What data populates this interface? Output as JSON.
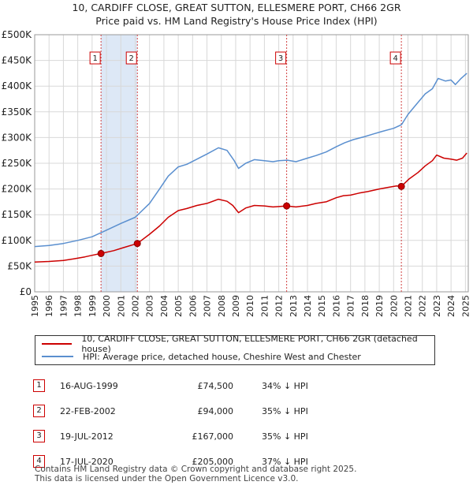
{
  "header": {
    "title_line1": "10, CARDIFF CLOSE, GREAT SUTTON, ELLESMERE PORT, CH66 2GR",
    "title_line2": "Price paid vs. HM Land Registry's House Price Index (HPI)"
  },
  "chart_data": {
    "type": "line",
    "title": "10, CARDIFF CLOSE, GREAT SUTTON, ELLESMERE PORT, CH66 2GR — Price paid vs. HM Land Registry's House Price Index (HPI)",
    "xlim": [
      1995,
      2025.2
    ],
    "ylim": [
      0,
      500000
    ],
    "y_ticks": [
      0,
      50000,
      100000,
      150000,
      200000,
      250000,
      300000,
      350000,
      400000,
      450000,
      500000
    ],
    "y_tick_labels": [
      "£0",
      "£50K",
      "£100K",
      "£150K",
      "£200K",
      "£250K",
      "£300K",
      "£350K",
      "£400K",
      "£450K",
      "£500K"
    ],
    "x_ticks": [
      1995,
      1996,
      1997,
      1998,
      1999,
      2000,
      2001,
      2002,
      2003,
      2004,
      2005,
      2006,
      2007,
      2008,
      2009,
      2010,
      2011,
      2012,
      2013,
      2014,
      2015,
      2016,
      2017,
      2018,
      2019,
      2020,
      2021,
      2022,
      2023,
      2024,
      2025
    ],
    "grid": true,
    "series": [
      {
        "name": "10, CARDIFF CLOSE, GREAT SUTTON, ELLESMERE PORT, CH66 2GR (detached house)",
        "color": "#cc0000",
        "x": [
          1995.0,
          1996.0,
          1997.0,
          1997.7,
          1998.5,
          1999.0,
          1999.62,
          2000.5,
          2001.2,
          2002.15,
          2003.0,
          2003.7,
          2004.3,
          2005.0,
          2005.6,
          2006.3,
          2007.0,
          2007.8,
          2008.4,
          2008.8,
          2009.2,
          2009.7,
          2010.3,
          2011.0,
          2011.6,
          2012.1,
          2012.55,
          2013.2,
          2014.0,
          2014.6,
          2015.3,
          2016.0,
          2016.5,
          2017.0,
          2017.6,
          2018.2,
          2019.0,
          2019.6,
          2020.2,
          2020.54,
          2021.1,
          2021.7,
          2022.2,
          2022.7,
          2023.0,
          2023.5,
          2024.0,
          2024.4,
          2024.8,
          2025.1
        ],
        "values": [
          58000,
          59000,
          61000,
          64000,
          68000,
          71000,
          74500,
          80000,
          86000,
          94000,
          112000,
          128000,
          145000,
          158000,
          162000,
          168000,
          172000,
          180000,
          176000,
          168000,
          154000,
          163000,
          168000,
          167000,
          165000,
          166000,
          167000,
          165000,
          168000,
          172000,
          175000,
          183000,
          187000,
          188000,
          192000,
          195000,
          200000,
          203000,
          206000,
          205000,
          220000,
          232000,
          245000,
          255000,
          266000,
          260000,
          258000,
          256000,
          260000,
          270000
        ]
      },
      {
        "name": "HPI: Average price, detached house, Cheshire West and Chester",
        "color": "#5a8fcf",
        "x": [
          1995.0,
          1996.0,
          1997.0,
          1998.0,
          1999.0,
          2000.0,
          2001.0,
          2002.0,
          2003.0,
          2003.7,
          2004.3,
          2005.0,
          2005.6,
          2006.3,
          2007.0,
          2007.8,
          2008.4,
          2008.9,
          2009.2,
          2009.7,
          2010.3,
          2011.0,
          2011.6,
          2012.0,
          2012.6,
          2013.2,
          2014.0,
          2014.6,
          2015.3,
          2016.0,
          2016.6,
          2017.2,
          2018.0,
          2018.6,
          2019.2,
          2020.0,
          2020.55,
          2021.0,
          2021.6,
          2022.2,
          2022.7,
          2023.1,
          2023.6,
          2024.0,
          2024.3,
          2024.7,
          2025.1
        ],
        "values": [
          88000,
          90000,
          94000,
          100000,
          107000,
          120000,
          133000,
          145000,
          172000,
          200000,
          225000,
          243000,
          248000,
          258000,
          268000,
          280000,
          275000,
          255000,
          240000,
          250000,
          257000,
          255000,
          253000,
          255000,
          256000,
          253000,
          260000,
          265000,
          272000,
          282000,
          290000,
          296000,
          302000,
          307000,
          312000,
          318000,
          325000,
          345000,
          365000,
          385000,
          395000,
          415000,
          410000,
          412000,
          403000,
          415000,
          425000
        ]
      }
    ],
    "sales": [
      {
        "n": "1",
        "x": 1999.62,
        "value": 74500
      },
      {
        "n": "2",
        "x": 2002.15,
        "value": 94000
      },
      {
        "n": "3",
        "x": 2012.55,
        "value": 167000
      },
      {
        "n": "4",
        "x": 2020.54,
        "value": 205000
      }
    ],
    "shaded_spans": [
      [
        1999.62,
        2002.15
      ]
    ]
  },
  "legend": {
    "property_label": "10, CARDIFF CLOSE, GREAT SUTTON, ELLESMERE PORT, CH66 2GR (detached house)",
    "hpi_label": "HPI: Average price, detached house, Cheshire West and Chester"
  },
  "transactions": [
    {
      "n": "1",
      "date": "16-AUG-1999",
      "price": "£74,500",
      "hpi": "34% ↓ HPI"
    },
    {
      "n": "2",
      "date": "22-FEB-2002",
      "price": "£94,000",
      "hpi": "35% ↓ HPI"
    },
    {
      "n": "3",
      "date": "19-JUL-2012",
      "price": "£167,000",
      "hpi": "35% ↓ HPI"
    },
    {
      "n": "4",
      "date": "17-JUL-2020",
      "price": "£205,000",
      "hpi": "37% ↓ HPI"
    }
  ],
  "footer": {
    "line1": "Contains HM Land Registry data © Crown copyright and database right 2025.",
    "line2": "This data is licensed under the Open Government Licence v3.0."
  }
}
